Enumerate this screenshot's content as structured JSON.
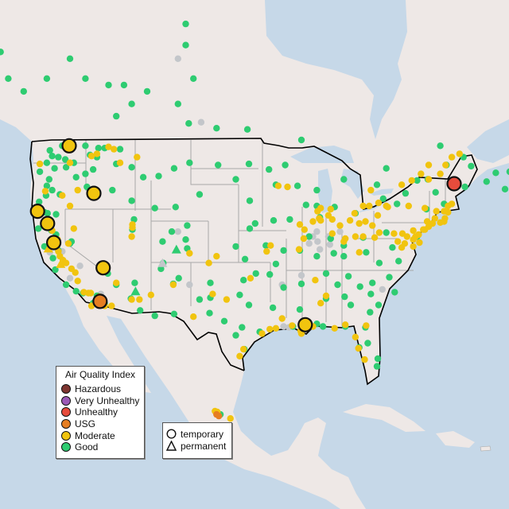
{
  "legend": {
    "title": "Air Quality Index",
    "categories": [
      {
        "key": "hazardous",
        "label": "Hazardous",
        "color": "#7e3530"
      },
      {
        "key": "very_unhealthy",
        "label": "Very Unhealthy",
        "color": "#9b59b6"
      },
      {
        "key": "unhealthy",
        "label": "Unhealthy",
        "color": "#e74c3c"
      },
      {
        "key": "usg",
        "label": "USG",
        "color": "#e67e22"
      },
      {
        "key": "moderate",
        "label": "Moderate",
        "color": "#f1c40f"
      },
      {
        "key": "good",
        "label": "Good",
        "color": "#2ecc71"
      }
    ],
    "no_data_color": "#c3c6ca",
    "types": [
      {
        "key": "temporary",
        "label": "temporary",
        "symbol": "circle"
      },
      {
        "key": "permanent",
        "label": "permanent",
        "symbol": "triangle"
      }
    ]
  },
  "colors": {
    "ocean": "#c6d8e8",
    "land": "#eee8e6",
    "border": "#000000",
    "state_lines": "#a8a8a8"
  },
  "monitors_temporary": [
    {
      "lon": -120.1,
      "lat": 48.5,
      "aqi": "moderate"
    },
    {
      "lon": -116.9,
      "lat": 44.2,
      "aqi": "moderate"
    },
    {
      "lon": -124.2,
      "lat": 42.5,
      "aqi": "moderate"
    },
    {
      "lon": -122.9,
      "lat": 41.3,
      "aqi": "moderate"
    },
    {
      "lon": -122.1,
      "lat": 39.4,
      "aqi": "moderate"
    },
    {
      "lon": -115.7,
      "lat": 36.8,
      "aqi": "moderate"
    },
    {
      "lon": -116.1,
      "lat": 33.2,
      "aqi": "usg"
    },
    {
      "lon": -89.5,
      "lat": 30.6,
      "aqi": "moderate"
    },
    {
      "lon": -70.2,
      "lat": 45.1,
      "aqi": "unhealthy"
    }
  ],
  "monitors_permanent_triangles": [
    {
      "lon": -106.2,
      "lat": 38.7,
      "aqi": "good"
    },
    {
      "lon": -111.5,
      "lat": 34.3,
      "aqi": "good"
    },
    {
      "lon": -108.0,
      "lat": 37.3,
      "aqi": "none"
    },
    {
      "lon": -122.8,
      "lat": 38.8,
      "aqi": "moderate"
    },
    {
      "lon": -121.2,
      "lat": 37.2,
      "aqi": "moderate"
    }
  ],
  "monitors": {
    "good": [
      [
        -128,
        54
      ],
      [
        -126,
        53
      ],
      [
        -123,
        54
      ],
      [
        -120,
        55.5
      ],
      [
        -118,
        54
      ],
      [
        -115,
        53.5
      ],
      [
        -114,
        51
      ],
      [
        -113,
        53.5
      ],
      [
        -112,
        52
      ],
      [
        -110,
        53
      ],
      [
        -106,
        52
      ],
      [
        -104.6,
        50.4
      ],
      [
        -101,
        50
      ],
      [
        -97,
        49.9
      ],
      [
        -104,
        54
      ],
      [
        -105,
        56.5
      ],
      [
        -105,
        58
      ],
      [
        -90,
        49
      ],
      [
        -79,
        46.5
      ],
      [
        -75,
        45.4
      ],
      [
        -73.6,
        45.5
      ],
      [
        -71.2,
        46.8
      ],
      [
        -66,
        45.3
      ],
      [
        -63.6,
        44.6
      ],
      [
        -63,
        46.2
      ],
      [
        -60,
        46.1
      ],
      [
        -64.8,
        46.1
      ],
      [
        -72,
        48.5
      ],
      [
        -69,
        47.5
      ],
      [
        -130,
        55.5
      ],
      [
        -135,
        58
      ],
      [
        -129,
        56
      ],
      [
        -122.3,
        47.6
      ],
      [
        -122.6,
        48.1
      ],
      [
        -123,
        47
      ],
      [
        -122,
        46.5
      ],
      [
        -122.7,
        45.5
      ],
      [
        -123,
        44.9
      ],
      [
        -123.1,
        44
      ],
      [
        -122.3,
        44.5
      ],
      [
        -121.5,
        47.5
      ],
      [
        -120.5,
        46.6
      ],
      [
        -119.5,
        47
      ],
      [
        -117.4,
        47.7
      ],
      [
        -118,
        46
      ],
      [
        -117,
        46.4
      ],
      [
        -116.5,
        47.5
      ],
      [
        -115.5,
        48.3
      ],
      [
        -116.3,
        48.3
      ],
      [
        -114,
        46.9
      ],
      [
        -112,
        46.6
      ],
      [
        -113.5,
        48.2
      ],
      [
        -110.5,
        45.7
      ],
      [
        -108.5,
        45.8
      ],
      [
        -106.5,
        46.5
      ],
      [
        -104.5,
        47
      ],
      [
        -119.2,
        45.7
      ],
      [
        -117.8,
        44.8
      ],
      [
        -121.3,
        44.1
      ],
      [
        -123.3,
        42.4
      ],
      [
        -122.9,
        42.3
      ],
      [
        -121.8,
        42.2
      ],
      [
        -124,
        43.4
      ],
      [
        -123.9,
        46.2
      ],
      [
        -121,
        48.5
      ],
      [
        -120.6,
        47.3
      ],
      [
        -118,
        48.5
      ],
      [
        -114.5,
        44.5
      ],
      [
        -112,
        43.5
      ],
      [
        -111.9,
        40.7
      ],
      [
        -111.7,
        41.7
      ],
      [
        -109,
        42.8
      ],
      [
        -106.3,
        42.9
      ],
      [
        -104.8,
        41.1
      ],
      [
        -108,
        39.5
      ],
      [
        -105,
        39.7
      ],
      [
        -104.8,
        38.8
      ],
      [
        -106.8,
        40.5
      ],
      [
        -107.9,
        37.3
      ],
      [
        -106.6,
        35.1
      ],
      [
        -108.2,
        36.7
      ],
      [
        -111.6,
        35.2
      ],
      [
        -112.1,
        33.5
      ],
      [
        -110.9,
        32.2
      ],
      [
        -109,
        31.6
      ],
      [
        -105.9,
        35.7
      ],
      [
        -103.2,
        33.4
      ],
      [
        -101.8,
        35.2
      ],
      [
        -101.8,
        33.6
      ],
      [
        -97.5,
        35.5
      ],
      [
        -95.9,
        36.2
      ],
      [
        -97.3,
        37.7
      ],
      [
        -98.5,
        39
      ],
      [
        -94.6,
        39.1
      ],
      [
        -96.7,
        40.8
      ],
      [
        -96,
        41.3
      ],
      [
        -100.8,
        46.8
      ],
      [
        -96.8,
        46.9
      ],
      [
        -98.5,
        45.5
      ],
      [
        -96.7,
        43.5
      ],
      [
        -103.2,
        44.1
      ],
      [
        -93.3,
        45
      ],
      [
        -92.1,
        46.8
      ],
      [
        -94.2,
        46.4
      ],
      [
        -93.6,
        41.6
      ],
      [
        -91.5,
        41.7
      ],
      [
        -90.2,
        38.6
      ],
      [
        -92.3,
        38.6
      ],
      [
        -93.3,
        37.2
      ],
      [
        -92.3,
        34.7
      ],
      [
        -94.1,
        36.1
      ],
      [
        -90,
        35.1
      ],
      [
        -86.8,
        36.2
      ],
      [
        -86.8,
        33.5
      ],
      [
        -88,
        30.7
      ],
      [
        -84.4,
        33.7
      ],
      [
        -83.6,
        32.8
      ],
      [
        -81.1,
        32
      ],
      [
        -81,
        34
      ],
      [
        -82.4,
        34.8
      ],
      [
        -80.8,
        35.2
      ],
      [
        -78.6,
        35.8
      ],
      [
        -77.4,
        37.5
      ],
      [
        -79.9,
        37.3
      ],
      [
        -80,
        32.8
      ],
      [
        -77.9,
        34.2
      ],
      [
        -81.7,
        30.3
      ],
      [
        -82.5,
        28
      ],
      [
        -81.4,
        28.5
      ],
      [
        -80.2,
        25.8
      ],
      [
        -80.1,
        26.7
      ],
      [
        -84.3,
        30.4
      ],
      [
        -87.2,
        30.4
      ],
      [
        -90.2,
        32.3
      ],
      [
        -91.1,
        30.4
      ],
      [
        -93.7,
        32.5
      ],
      [
        -95.4,
        29.8
      ],
      [
        -97.7,
        30.3
      ],
      [
        -98.5,
        29.4
      ],
      [
        -96.8,
        32.8
      ],
      [
        -97.4,
        27.8
      ],
      [
        -101.9,
        31.9
      ],
      [
        -106.5,
        31.8
      ],
      [
        -88,
        43
      ],
      [
        -89.4,
        43.1
      ],
      [
        -87.6,
        41.9
      ],
      [
        -86.2,
        39.8
      ],
      [
        -85.8,
        38.3
      ],
      [
        -84.5,
        39.1
      ],
      [
        -82,
        39.9
      ],
      [
        -83,
        42.3
      ],
      [
        -85.7,
        42.9
      ],
      [
        -84.5,
        45.5
      ],
      [
        -88,
        44.5
      ],
      [
        -90.5,
        44.9
      ],
      [
        -79.4,
        43.7
      ],
      [
        -80.2,
        45
      ],
      [
        -76.5,
        44.2
      ],
      [
        -77.6,
        43.2
      ],
      [
        -73.8,
        42.7
      ],
      [
        -72.6,
        44.3
      ],
      [
        -71.5,
        43.2
      ],
      [
        -68.8,
        44.8
      ],
      [
        -68,
        46.7
      ],
      [
        -75,
        40
      ],
      [
        -79,
        40.4
      ],
      [
        -78.2,
        38.9
      ],
      [
        -81.6,
        38.4
      ],
      [
        -84.5,
        38
      ],
      [
        -85.3,
        35
      ],
      [
        -83.9,
        35.9
      ],
      [
        -88,
        38
      ],
      [
        -89,
        40
      ],
      [
        -100,
        31
      ],
      [
        -98,
        33.9
      ],
      [
        -117,
        33
      ],
      [
        -116.5,
        33.8
      ],
      [
        -118.3,
        34.1
      ],
      [
        -119.2,
        34.3
      ],
      [
        -120.5,
        35
      ],
      [
        -121.9,
        36.6
      ],
      [
        -122.2,
        37.8
      ],
      [
        -121.5,
        38.6
      ],
      [
        -120,
        39.3
      ],
      [
        -119.8,
        39.5
      ],
      [
        -121.8,
        40.2
      ],
      [
        -122.4,
        40.6
      ],
      [
        -124.1,
        40.8
      ],
      [
        -123.3,
        39
      ],
      [
        -115.1,
        36.2
      ],
      [
        -114,
        35
      ],
      [
        -115.5,
        33
      ],
      [
        -100.5,
        20.0
      ]
    ],
    "moderate": [
      [
        -87.9,
        42.5
      ],
      [
        -87.7,
        41.8
      ],
      [
        -87.5,
        41.6
      ],
      [
        -86.5,
        42.1
      ],
      [
        -86.2,
        42.7
      ],
      [
        -86,
        41.7
      ],
      [
        -88.5,
        41.5
      ],
      [
        -89.6,
        40.7
      ],
      [
        -90.2,
        41.2
      ],
      [
        -87.5,
        42.8
      ],
      [
        -83.1,
        42.3
      ],
      [
        -83.7,
        41.6
      ],
      [
        -81.7,
        41.5
      ],
      [
        -82.5,
        41.3
      ],
      [
        -80.8,
        41.1
      ],
      [
        -80.1,
        42.1
      ],
      [
        -79,
        43
      ],
      [
        -78.8,
        42.9
      ],
      [
        -76.1,
        43
      ],
      [
        -74,
        42.8
      ],
      [
        -80,
        43.3
      ],
      [
        -81.2,
        43
      ],
      [
        -82,
        43
      ],
      [
        -81,
        44.5
      ],
      [
        -77,
        45
      ],
      [
        -75.7,
        45.4
      ],
      [
        -73.5,
        45.5
      ],
      [
        -72,
        46
      ],
      [
        -71.3,
        46.8
      ],
      [
        -73.5,
        46.8
      ],
      [
        -74.5,
        46
      ],
      [
        -70.5,
        47.5
      ],
      [
        -69.5,
        47.8
      ],
      [
        -77.5,
        39.5
      ],
      [
        -77,
        38.9
      ],
      [
        -76.6,
        39.3
      ],
      [
        -75.5,
        39.7
      ],
      [
        -75.2,
        40
      ],
      [
        -74.2,
        40.7
      ],
      [
        -74,
        40.7
      ],
      [
        -73.5,
        41
      ],
      [
        -73,
        41.3
      ],
      [
        -72.7,
        41.8
      ],
      [
        -72,
        41.4
      ],
      [
        -71.4,
        41.8
      ],
      [
        -71,
        42.4
      ],
      [
        -71.5,
        42.5
      ],
      [
        -72.5,
        42.5
      ],
      [
        -73.7,
        41.5
      ],
      [
        -74.8,
        40.2
      ],
      [
        -75.5,
        40.6
      ],
      [
        -76.3,
        40
      ],
      [
        -76.9,
        40.3
      ],
      [
        -78,
        40.3
      ],
      [
        -79.9,
        40.4
      ],
      [
        -80.5,
        39.9
      ],
      [
        -82,
        40
      ],
      [
        -83,
        40
      ],
      [
        -84.5,
        39.5
      ],
      [
        -85,
        41.1
      ],
      [
        -86,
        40.3
      ],
      [
        -82.5,
        38.4
      ],
      [
        -84.3,
        39.8
      ],
      [
        -75.5,
        39
      ],
      [
        -74.7,
        39.4
      ],
      [
        -70.5,
        43.2
      ],
      [
        -71,
        43
      ],
      [
        -71.5,
        41.5
      ],
      [
        -88.2,
        35.5
      ],
      [
        -86.8,
        33.8
      ],
      [
        -87.5,
        33
      ],
      [
        -90.1,
        29.9
      ],
      [
        -91.2,
        30.5
      ],
      [
        -92.5,
        31.3
      ],
      [
        -93.3,
        30.2
      ],
      [
        -94.1,
        30.1
      ],
      [
        -95.1,
        29.6
      ],
      [
        -97.5,
        27.8
      ],
      [
        -85.7,
        30.2
      ],
      [
        -84.3,
        30.6
      ],
      [
        -83,
        29.2
      ],
      [
        -82.6,
        27.9
      ],
      [
        -81.8,
        26.6
      ],
      [
        -81.6,
        30.5
      ],
      [
        -96.6,
        35.7
      ],
      [
        -106.6,
        35
      ],
      [
        -109.5,
        33.9
      ],
      [
        -104,
        31.5
      ],
      [
        -101.5,
        34
      ],
      [
        -99.7,
        33.4
      ],
      [
        -91.8,
        44.8
      ],
      [
        -93,
        44.9
      ],
      [
        -94,
        39.1
      ],
      [
        -94.5,
        38.5
      ],
      [
        -90.3,
        38.7
      ],
      [
        -89.7,
        39.8
      ],
      [
        -111.9,
        40.9
      ],
      [
        -111.9,
        41.2
      ],
      [
        -112,
        40
      ],
      [
        -117.2,
        47.6
      ],
      [
        -116.5,
        47.8
      ],
      [
        -115,
        48.4
      ],
      [
        -113.5,
        47
      ],
      [
        -111.3,
        47.5
      ],
      [
        -114.3,
        48.2
      ],
      [
        -120,
        47
      ],
      [
        -122.6,
        41
      ],
      [
        -121.6,
        39.7
      ],
      [
        -121.5,
        38.5
      ],
      [
        -121.3,
        38
      ],
      [
        -120.9,
        37.6
      ],
      [
        -120.5,
        37.3
      ],
      [
        -119.8,
        36.7
      ],
      [
        -119.3,
        36.3
      ],
      [
        -119,
        35.4
      ],
      [
        -118.2,
        34.2
      ],
      [
        -117.6,
        34.1
      ],
      [
        -117.3,
        34.1
      ],
      [
        -116.2,
        33.7
      ],
      [
        -117.2,
        32.7
      ],
      [
        -115.5,
        32.7
      ],
      [
        -114.6,
        32.7
      ],
      [
        -111,
        33.4
      ],
      [
        -112,
        33.4
      ],
      [
        -114,
        35.2
      ],
      [
        -123.9,
        46.9
      ],
      [
        -123.2,
        44.4
      ],
      [
        -121,
        44
      ],
      [
        -120,
        43
      ],
      [
        -119,
        44.5
      ],
      [
        -119.5,
        40.8
      ],
      [
        -120.2,
        39.3
      ],
      [
        -122.3,
        40.6
      ],
      [
        -102,
        37.3
      ],
      [
        -101,
        38
      ],
      [
        -104.5,
        38.3
      ],
      [
        -98,
        27
      ],
      [
        -101.2,
        20.4
      ],
      [
        -100.9,
        20.3
      ],
      [
        -99.2,
        19.5
      ],
      [
        -90,
        29.6
      ],
      [
        -88.5,
        30.4
      ]
    ],
    "usg": [
      [
        -101.0,
        20.0
      ],
      [
        -100.7,
        19.8
      ]
    ],
    "none": [
      [
        -88,
        40.5
      ],
      [
        -88.5,
        40
      ],
      [
        -87.9,
        39.5
      ],
      [
        -89,
        39.3
      ],
      [
        -87.6,
        38.7
      ],
      [
        -86.5,
        40
      ],
      [
        -86.3,
        39.2
      ],
      [
        -90,
        36
      ],
      [
        -79.5,
        34.5
      ],
      [
        -85,
        40.5
      ],
      [
        -92.5,
        35
      ],
      [
        -122.6,
        38.4
      ],
      [
        -120,
        35.7
      ],
      [
        -116,
        34
      ],
      [
        -104.5,
        35
      ],
      [
        -106,
        40.5
      ],
      [
        -103,
        50.5
      ],
      [
        -106,
        55.5
      ],
      [
        -121,
        38.5
      ],
      [
        -118.7,
        37
      ],
      [
        -92.3,
        30.4
      ],
      [
        -91.6,
        30.3
      ]
    ]
  }
}
